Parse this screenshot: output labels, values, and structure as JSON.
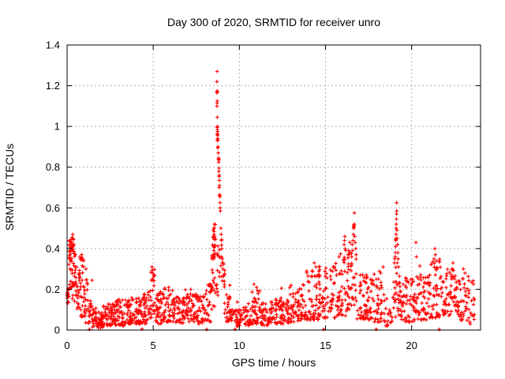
{
  "window": {
    "title": "Day 300 of 2020, SRMTID for receiver unro"
  },
  "chart_data": {
    "type": "scatter",
    "title": "Day 300 of 2020, SRMTID for receiver unro",
    "xlabel": "GPS time / hours",
    "ylabel": "SRMTID / TECUs",
    "xlim": [
      0,
      24
    ],
    "ylim": [
      0,
      1.4
    ],
    "xtick_values": [
      0,
      5,
      10,
      15,
      20
    ],
    "xtick_labels": [
      "0",
      "5",
      "10",
      "15",
      "20"
    ],
    "ytick_values": [
      0,
      0.2,
      0.4,
      0.6,
      0.8,
      1.0,
      1.2,
      1.4
    ],
    "ytick_labels": [
      "0",
      "0.2",
      "0.4",
      "0.6",
      "0.8",
      "1",
      "1.2",
      "1.4"
    ],
    "grid": true,
    "grid_color": "#b0b0b0",
    "marker": {
      "glyph": "plus",
      "color": "#ff0000",
      "half_size": 2.3,
      "stroke_width": 1.1
    },
    "notes": "Dense 30s-cadence scatter; envelope rows are [t_start,t_end,count,y_low,y_high,bias] giving the vertical spread of points per time span; feature_points are individually read off the plot (spikes at ~8.7h max 1.27, ~16.7h max 0.58, ~19.1h max 0.62).",
    "envelope": [
      [
        0.0,
        0.12,
        12,
        0.1,
        0.27,
        0.9
      ],
      [
        0.05,
        0.45,
        55,
        0.13,
        0.47,
        0.75
      ],
      [
        0.45,
        0.75,
        30,
        0.1,
        0.37,
        1.1
      ],
      [
        0.75,
        1.05,
        28,
        0.06,
        0.37,
        1.3
      ],
      [
        1.05,
        1.45,
        28,
        0.03,
        0.26,
        1.6
      ],
      [
        1.45,
        2.1,
        55,
        0.01,
        0.11,
        1.3
      ],
      [
        2.1,
        2.8,
        60,
        0.02,
        0.13,
        1.4
      ],
      [
        2.8,
        3.6,
        65,
        0.02,
        0.15,
        1.5
      ],
      [
        3.6,
        4.4,
        65,
        0.03,
        0.16,
        1.4
      ],
      [
        4.4,
        4.85,
        35,
        0.03,
        0.2,
        1.5
      ],
      [
        4.85,
        5.1,
        20,
        0.06,
        0.31,
        1.2
      ],
      [
        5.1,
        5.6,
        38,
        0.03,
        0.19,
        1.5
      ],
      [
        5.6,
        6.2,
        45,
        0.04,
        0.21,
        1.5
      ],
      [
        6.2,
        6.8,
        45,
        0.03,
        0.17,
        1.4
      ],
      [
        6.8,
        7.4,
        45,
        0.04,
        0.2,
        1.5
      ],
      [
        7.4,
        8.0,
        45,
        0.03,
        0.18,
        1.4
      ],
      [
        8.0,
        8.35,
        26,
        0.04,
        0.23,
        1.3
      ],
      [
        8.35,
        8.6,
        20,
        0.1,
        0.42,
        1.1
      ],
      [
        8.45,
        8.6,
        10,
        0.35,
        0.52,
        1.0
      ],
      [
        8.6,
        9.0,
        22,
        0.15,
        0.45,
        1.2
      ],
      [
        9.0,
        9.15,
        10,
        0.18,
        0.33,
        1.0
      ],
      [
        9.1,
        9.6,
        30,
        0.04,
        0.18,
        1.4
      ],
      [
        9.6,
        10.6,
        60,
        0.02,
        0.14,
        1.4
      ],
      [
        10.6,
        11.25,
        45,
        0.03,
        0.2,
        1.5
      ],
      [
        11.25,
        12.1,
        60,
        0.02,
        0.14,
        1.3
      ],
      [
        12.1,
        12.9,
        60,
        0.03,
        0.16,
        1.4
      ],
      [
        12.9,
        13.6,
        50,
        0.04,
        0.21,
        1.5
      ],
      [
        13.6,
        14.6,
        70,
        0.05,
        0.3,
        1.6
      ],
      [
        14.6,
        15.6,
        70,
        0.06,
        0.32,
        1.6
      ],
      [
        15.6,
        16.3,
        50,
        0.07,
        0.4,
        1.7
      ],
      [
        16.3,
        16.8,
        35,
        0.1,
        0.45,
        1.5
      ],
      [
        16.8,
        17.6,
        55,
        0.05,
        0.28,
        1.5
      ],
      [
        17.6,
        18.3,
        50,
        0.04,
        0.3,
        1.7
      ],
      [
        18.3,
        18.9,
        22,
        0.02,
        0.18,
        1.3
      ],
      [
        18.9,
        19.3,
        25,
        0.06,
        0.33,
        1.3
      ],
      [
        19.3,
        20.15,
        60,
        0.04,
        0.26,
        1.5
      ],
      [
        20.15,
        21.0,
        60,
        0.05,
        0.33,
        1.6
      ],
      [
        21.0,
        21.8,
        60,
        0.06,
        0.35,
        1.6
      ],
      [
        21.8,
        22.7,
        65,
        0.07,
        0.3,
        1.3
      ],
      [
        22.7,
        23.35,
        45,
        0.04,
        0.28,
        1.4
      ],
      [
        23.35,
        23.65,
        14,
        0.02,
        0.25,
        1.3
      ]
    ],
    "feature_points": [
      [
        0.3,
        0.455
      ],
      [
        0.33,
        0.47
      ],
      [
        0.36,
        0.445
      ],
      [
        0.28,
        0.43
      ],
      [
        0.4,
        0.42
      ],
      [
        0.85,
        0.37
      ],
      [
        0.88,
        0.355
      ],
      [
        0.95,
        0.34
      ],
      [
        1.1,
        0.3
      ],
      [
        4.9,
        0.245
      ],
      [
        4.93,
        0.31
      ],
      [
        4.95,
        0.295
      ],
      [
        4.97,
        0.28
      ],
      [
        5.0,
        0.26
      ],
      [
        8.48,
        0.37
      ],
      [
        8.5,
        0.41
      ],
      [
        8.51,
        0.35
      ],
      [
        8.52,
        0.39
      ],
      [
        8.53,
        0.47
      ],
      [
        8.54,
        0.445
      ],
      [
        8.55,
        0.5
      ],
      [
        8.56,
        0.52
      ],
      [
        8.57,
        0.46
      ],
      [
        8.71,
        1.27
      ],
      [
        8.7,
        1.22
      ],
      [
        8.71,
        1.175
      ],
      [
        8.72,
        1.17
      ],
      [
        8.7,
        1.165
      ],
      [
        8.72,
        1.125
      ],
      [
        8.71,
        1.115
      ],
      [
        8.7,
        1.1
      ],
      [
        8.72,
        1.045
      ],
      [
        8.73,
        1.0
      ],
      [
        8.71,
        0.995
      ],
      [
        8.72,
        0.985
      ],
      [
        8.74,
        0.975
      ],
      [
        8.73,
        0.965
      ],
      [
        8.72,
        0.96
      ],
      [
        8.74,
        0.955
      ],
      [
        8.75,
        0.94
      ],
      [
        8.73,
        0.935
      ],
      [
        8.74,
        0.93
      ],
      [
        8.76,
        0.9
      ],
      [
        8.75,
        0.895
      ],
      [
        8.78,
        0.87
      ],
      [
        8.8,
        0.845
      ],
      [
        8.79,
        0.84
      ],
      [
        8.81,
        0.835
      ],
      [
        8.8,
        0.825
      ],
      [
        8.82,
        0.795
      ],
      [
        8.81,
        0.78
      ],
      [
        8.83,
        0.76
      ],
      [
        8.82,
        0.755
      ],
      [
        8.84,
        0.735
      ],
      [
        8.85,
        0.71
      ],
      [
        8.83,
        0.7
      ],
      [
        8.86,
        0.665
      ],
      [
        8.85,
        0.66
      ],
      [
        8.87,
        0.655
      ],
      [
        8.88,
        0.625
      ],
      [
        8.89,
        0.6
      ],
      [
        8.9,
        0.585
      ],
      [
        8.93,
        0.5
      ],
      [
        8.95,
        0.47
      ],
      [
        8.96,
        0.44
      ],
      [
        8.97,
        0.36
      ],
      [
        8.98,
        0.4
      ],
      [
        9.0,
        0.33
      ],
      [
        9.02,
        0.35
      ],
      [
        9.05,
        0.3
      ],
      [
        9.08,
        0.265
      ],
      [
        9.45,
        0.22
      ],
      [
        10.85,
        0.225
      ],
      [
        11.0,
        0.21
      ],
      [
        12.45,
        0.205
      ],
      [
        13.0,
        0.22
      ],
      [
        14.35,
        0.33
      ],
      [
        14.45,
        0.31
      ],
      [
        15.5,
        0.305
      ],
      [
        15.52,
        0.31
      ],
      [
        16.08,
        0.42
      ],
      [
        16.1,
        0.44
      ],
      [
        16.12,
        0.46
      ],
      [
        16.14,
        0.4
      ],
      [
        16.3,
        0.37
      ],
      [
        16.35,
        0.39
      ],
      [
        16.52,
        0.36
      ],
      [
        16.55,
        0.42
      ],
      [
        16.57,
        0.39
      ],
      [
        16.6,
        0.44
      ],
      [
        16.62,
        0.47
      ],
      [
        16.63,
        0.5
      ],
      [
        16.64,
        0.51
      ],
      [
        16.65,
        0.515
      ],
      [
        16.66,
        0.505
      ],
      [
        16.67,
        0.52
      ],
      [
        16.68,
        0.575
      ],
      [
        16.7,
        0.46
      ],
      [
        16.72,
        0.43
      ],
      [
        16.75,
        0.4
      ],
      [
        16.78,
        0.37
      ],
      [
        17.95,
        0.25
      ],
      [
        18.2,
        0.28
      ],
      [
        18.35,
        0.31
      ],
      [
        19.0,
        0.33
      ],
      [
        19.02,
        0.35
      ],
      [
        19.05,
        0.36
      ],
      [
        19.06,
        0.38
      ],
      [
        19.07,
        0.41
      ],
      [
        19.08,
        0.445
      ],
      [
        19.08,
        0.44
      ],
      [
        19.09,
        0.45
      ],
      [
        19.1,
        0.47
      ],
      [
        19.1,
        0.5
      ],
      [
        19.11,
        0.52
      ],
      [
        19.12,
        0.545
      ],
      [
        19.12,
        0.57
      ],
      [
        19.13,
        0.585
      ],
      [
        19.13,
        0.625
      ],
      [
        19.15,
        0.49
      ],
      [
        19.16,
        0.33
      ],
      [
        19.17,
        0.45
      ],
      [
        19.18,
        0.42
      ],
      [
        19.2,
        0.38
      ],
      [
        19.22,
        0.35
      ],
      [
        19.24,
        0.31
      ],
      [
        20.25,
        0.43
      ],
      [
        20.28,
        0.36
      ],
      [
        21.3,
        0.35
      ],
      [
        21.35,
        0.4
      ],
      [
        21.38,
        0.37
      ],
      [
        22.4,
        0.33
      ],
      [
        23.0,
        0.3
      ],
      [
        1.3,
        0.004
      ],
      [
        4.35,
        0.005
      ],
      [
        8.1,
        0.003
      ],
      [
        9.75,
        0.004
      ],
      [
        14.9,
        0.003
      ],
      [
        17.95,
        0.004
      ],
      [
        21.6,
        0.003
      ]
    ]
  }
}
